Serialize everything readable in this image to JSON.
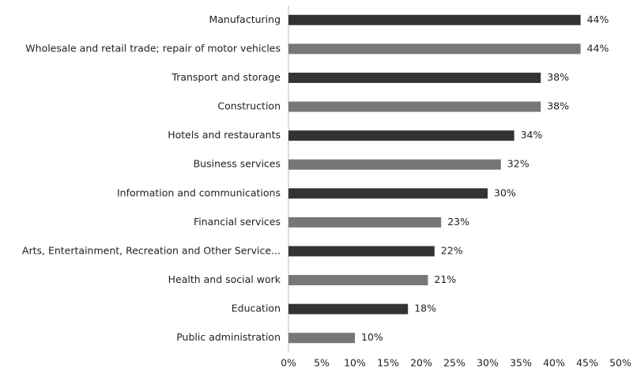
{
  "chart_data": {
    "type": "hbar",
    "categories": [
      "Manufacturing",
      "Wholesale and retail trade; repair of motor vehicles",
      "Transport and storage",
      "Construction",
      "Hotels and restaurants",
      "Business services",
      "Information and communications",
      "Financial services",
      "Arts, Entertainment, Recreation and Other Service...",
      "Health and social work",
      "Education",
      "Public administration"
    ],
    "values": [
      44,
      44,
      38,
      38,
      34,
      32,
      30,
      23,
      22,
      21,
      18,
      10
    ],
    "value_labels": [
      "44%",
      "44%",
      "38%",
      "38%",
      "34%",
      "32%",
      "30%",
      "23%",
      "22%",
      "21%",
      "18%",
      "10%"
    ],
    "colors": [
      "#333333",
      "#777777",
      "#333333",
      "#777777",
      "#333333",
      "#777777",
      "#333333",
      "#777777",
      "#333333",
      "#777777",
      "#333333",
      "#777777"
    ],
    "xlim": [
      0,
      50
    ],
    "xticks": [
      {
        "value": 0,
        "label": "0%"
      },
      {
        "value": 5,
        "label": "5%"
      },
      {
        "value": 10,
        "label": "10%"
      },
      {
        "value": 15,
        "label": "15%"
      },
      {
        "value": 20,
        "label": "20%"
      },
      {
        "value": 25,
        "label": "25%"
      },
      {
        "value": 30,
        "label": "30%"
      },
      {
        "value": 35,
        "label": "35%"
      },
      {
        "value": 40,
        "label": "40%"
      },
      {
        "value": 45,
        "label": "45%"
      },
      {
        "value": 50,
        "label": "50%"
      }
    ]
  }
}
